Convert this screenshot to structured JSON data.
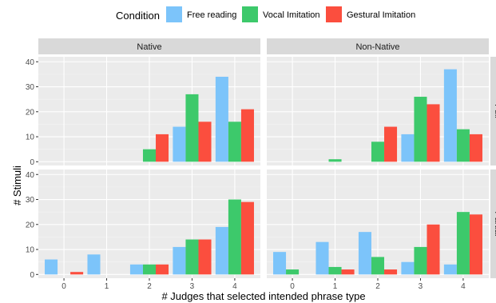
{
  "chart_data": {
    "type": "bar",
    "legend": {
      "title": "Condition",
      "placement": "top",
      "entries": [
        {
          "name": "Free reading",
          "color": "#7CC4FA"
        },
        {
          "name": "Vocal Imitation",
          "color": "#3DC96B"
        },
        {
          "name": "Gestural Imitation",
          "color": "#FB4E3E"
        }
      ]
    },
    "xlabel": "# Judges that selected intended phrase type",
    "ylabel": "# Stimuli",
    "x_categories": [
      "0",
      "1",
      "2",
      "3",
      "4"
    ],
    "y_ticks": [
      "0",
      "10",
      "20",
      "30",
      "40"
    ],
    "ylim": [
      -1.5,
      42
    ],
    "grid": true,
    "columns": [
      "Native",
      "Non-Native"
    ],
    "rows": [
      "Full",
      "Partial"
    ],
    "panels": [
      {
        "column": "Native",
        "row": "Full",
        "series": [
          {
            "name": "Free reading",
            "values": [
              0,
              0,
              0,
              14,
              34
            ]
          },
          {
            "name": "Vocal Imitation",
            "values": [
              0,
              0,
              5,
              27,
              16
            ]
          },
          {
            "name": "Gestural Imitation",
            "values": [
              0,
              0,
              11,
              16,
              21
            ]
          }
        ]
      },
      {
        "column": "Non-Native",
        "row": "Full",
        "series": [
          {
            "name": "Free reading",
            "values": [
              0,
              0,
              0,
              11,
              37
            ]
          },
          {
            "name": "Vocal Imitation",
            "values": [
              0,
              1,
              8,
              26,
              13
            ]
          },
          {
            "name": "Gestural Imitation",
            "values": [
              0,
              0,
              14,
              23,
              11
            ]
          }
        ]
      },
      {
        "column": "Native",
        "row": "Partial",
        "series": [
          {
            "name": "Free reading",
            "values": [
              6,
              8,
              4,
              11,
              19
            ]
          },
          {
            "name": "Vocal Imitation",
            "values": [
              0,
              0,
              4,
              14,
              30
            ]
          },
          {
            "name": "Gestural Imitation",
            "values": [
              1,
              0,
              4,
              14,
              29
            ]
          }
        ]
      },
      {
        "column": "Non-Native",
        "row": "Partial",
        "series": [
          {
            "name": "Free reading",
            "values": [
              9,
              13,
              17,
              5,
              4
            ]
          },
          {
            "name": "Vocal Imitation",
            "values": [
              2,
              3,
              7,
              11,
              25
            ]
          },
          {
            "name": "Gestural Imitation",
            "values": [
              0,
              2,
              2,
              20,
              24
            ]
          }
        ]
      }
    ]
  }
}
